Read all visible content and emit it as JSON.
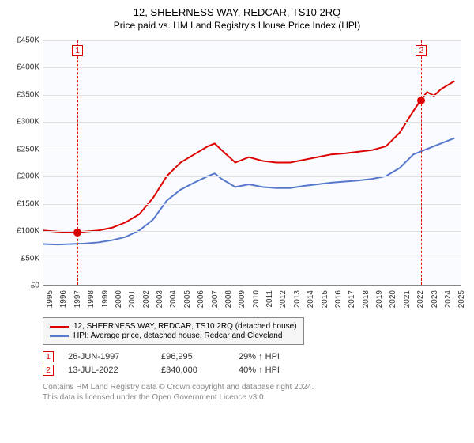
{
  "title": "12, SHEERNESS WAY, REDCAR, TS10 2RQ",
  "subtitle": "Price paid vs. HM Land Registry's House Price Index (HPI)",
  "chart": {
    "type": "line",
    "background_color": "#fafbff",
    "grid_color": "#e0e0e0",
    "axis_color": "#888888",
    "xlim": [
      1995,
      2025.5
    ],
    "ylim": [
      0,
      450000
    ],
    "ytick_step": 50000,
    "yticks": [
      "£0",
      "£50K",
      "£100K",
      "£150K",
      "£200K",
      "£250K",
      "£300K",
      "£350K",
      "£400K",
      "£450K"
    ],
    "xticks": [
      1995,
      1996,
      1997,
      1998,
      1999,
      2000,
      2001,
      2002,
      2003,
      2004,
      2005,
      2006,
      2007,
      2008,
      2009,
      2010,
      2011,
      2012,
      2013,
      2014,
      2015,
      2016,
      2017,
      2018,
      2019,
      2020,
      2021,
      2022,
      2023,
      2024,
      2025
    ],
    "label_fontsize": 10,
    "title_fontsize": 13,
    "subtitle_fontsize": 12,
    "line_width": 2,
    "series": [
      {
        "name": "12, SHEERNESS WAY, REDCAR, TS10 2RQ (detached house)",
        "color": "#dd0000",
        "data": [
          [
            1995,
            100000
          ],
          [
            1996,
            98000
          ],
          [
            1997,
            97000
          ],
          [
            1997.5,
            96995
          ],
          [
            1998,
            98000
          ],
          [
            1999,
            100000
          ],
          [
            2000,
            105000
          ],
          [
            2001,
            115000
          ],
          [
            2002,
            130000
          ],
          [
            2003,
            160000
          ],
          [
            2004,
            200000
          ],
          [
            2005,
            225000
          ],
          [
            2006,
            240000
          ],
          [
            2007,
            255000
          ],
          [
            2007.5,
            260000
          ],
          [
            2008,
            248000
          ],
          [
            2009,
            225000
          ],
          [
            2010,
            235000
          ],
          [
            2011,
            228000
          ],
          [
            2012,
            225000
          ],
          [
            2013,
            225000
          ],
          [
            2014,
            230000
          ],
          [
            2015,
            235000
          ],
          [
            2016,
            240000
          ],
          [
            2017,
            242000
          ],
          [
            2018,
            245000
          ],
          [
            2019,
            248000
          ],
          [
            2020,
            255000
          ],
          [
            2021,
            280000
          ],
          [
            2022,
            320000
          ],
          [
            2022.53,
            340000
          ],
          [
            2023,
            355000
          ],
          [
            2023.5,
            348000
          ],
          [
            2024,
            360000
          ],
          [
            2025,
            375000
          ]
        ]
      },
      {
        "name": "HPI: Average price, detached house, Redcar and Cleveland",
        "color": "#5577cc",
        "data": [
          [
            1995,
            75000
          ],
          [
            1996,
            74000
          ],
          [
            1997,
            75000
          ],
          [
            1998,
            76000
          ],
          [
            1999,
            78000
          ],
          [
            2000,
            82000
          ],
          [
            2001,
            88000
          ],
          [
            2002,
            100000
          ],
          [
            2003,
            120000
          ],
          [
            2004,
            155000
          ],
          [
            2005,
            175000
          ],
          [
            2006,
            188000
          ],
          [
            2007,
            200000
          ],
          [
            2007.5,
            205000
          ],
          [
            2008,
            195000
          ],
          [
            2009,
            180000
          ],
          [
            2010,
            185000
          ],
          [
            2011,
            180000
          ],
          [
            2012,
            178000
          ],
          [
            2013,
            178000
          ],
          [
            2014,
            182000
          ],
          [
            2015,
            185000
          ],
          [
            2016,
            188000
          ],
          [
            2017,
            190000
          ],
          [
            2018,
            192000
          ],
          [
            2019,
            195000
          ],
          [
            2020,
            200000
          ],
          [
            2021,
            215000
          ],
          [
            2022,
            240000
          ],
          [
            2023,
            250000
          ],
          [
            2024,
            260000
          ],
          [
            2025,
            270000
          ]
        ]
      }
    ],
    "sale_markers": [
      {
        "label": "1",
        "x": 1997.48,
        "y": 96995
      },
      {
        "label": "2",
        "x": 2022.53,
        "y": 340000
      }
    ],
    "marker_line_color": "#ee0000",
    "marker_box_border": "#dd0000",
    "marker_dot_color": "#dd0000",
    "marker_dot_size": 10
  },
  "legend": {
    "series1_label": "12, SHEERNESS WAY, REDCAR, TS10 2RQ (detached house)",
    "series2_label": "HPI: Average price, detached house, Redcar and Cleveland",
    "border_color": "#888888",
    "background": "#f5f5f5"
  },
  "sales": [
    {
      "marker": "1",
      "date": "26-JUN-1997",
      "price": "£96,995",
      "delta": "29% ↑ HPI"
    },
    {
      "marker": "2",
      "date": "13-JUL-2022",
      "price": "£340,000",
      "delta": "40% ↑ HPI"
    }
  ],
  "footer": {
    "line1": "Contains HM Land Registry data © Crown copyright and database right 2024.",
    "line2": "This data is licensed under the Open Government Licence v3.0."
  }
}
